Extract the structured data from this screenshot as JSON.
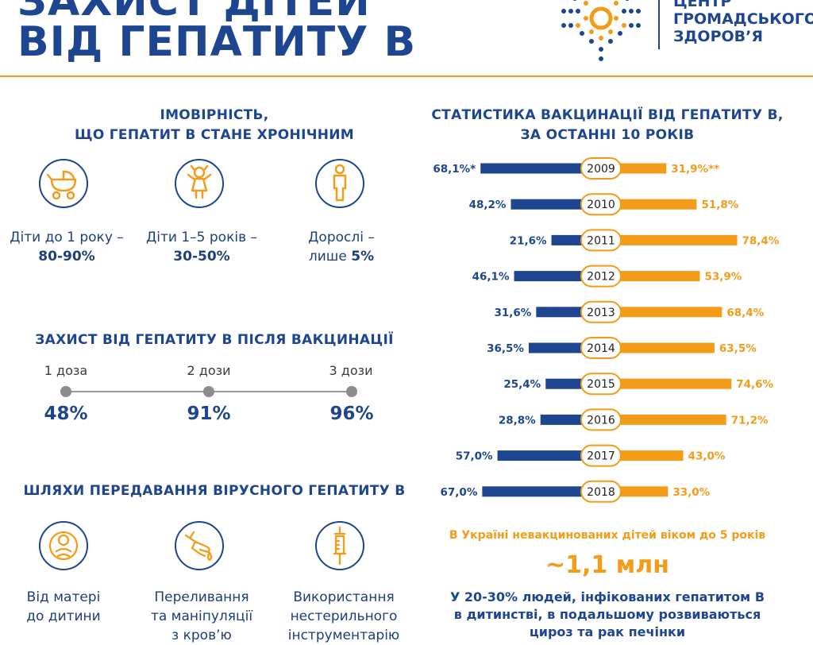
{
  "header": {
    "title_line1": "ЗАХИСТ ДІТЕЙ",
    "title_line2": "ВІД ГЕПАТИТУ В",
    "logo_line1": "ЦЕНТР",
    "logo_line2": "ГРОМАДСЬКОГО",
    "logo_line3": "ЗДОРОВ’Я"
  },
  "chronic": {
    "title_line1": "ІМОВІРНІСТЬ,",
    "title_line2": "ЩО ГЕПАТИТ В СТАНЕ ХРОНІЧНИМ",
    "items": [
      {
        "label": "Діти до 1 року –",
        "value": "80-90%",
        "icon": "baby-stroller-icon"
      },
      {
        "label": "Діти 1–5 років –",
        "value": "30-50%",
        "icon": "child-icon"
      },
      {
        "label": "Дорослі –",
        "label2": "лише",
        "value": "5%",
        "icon": "adult-icon"
      }
    ]
  },
  "protection": {
    "title": "ЗАХИСТ ВІД ГЕПАТИТУ В ПІСЛЯ ВАКЦИНАЦІЇ",
    "doses": [
      {
        "label": "1 доза",
        "value": "48%"
      },
      {
        "label": "2 дози",
        "value": "91%"
      },
      {
        "label": "3 дози",
        "value": "96%"
      }
    ]
  },
  "transmission": {
    "title": "ШЛЯХИ ПЕРЕДАВАННЯ ВІРУСНОГО ГЕПАТИТУ В",
    "items": [
      {
        "line1": "Від матері",
        "line2": "до дитини",
        "line3": "",
        "icon": "mother-child-icon"
      },
      {
        "line1": "Переливання",
        "line2": "та маніпуляції",
        "line3": "з кров’ю",
        "icon": "blood-hand-icon"
      },
      {
        "line1": "Використання",
        "line2": "нестерильного",
        "line3": "інструментарію",
        "icon": "syringe-icon"
      }
    ]
  },
  "stats": {
    "title_line1": "СТАТИСТИКА ВАКЦИНАЦІЇ ВІД ГЕПАТИТУ В,",
    "title_line2": "ЗА ОСТАННІ 10 РОКІВ",
    "note": "В Україні невакцинованих дітей віком до 5 років",
    "big_value": "~1,1 млн",
    "bottom_line1": "У 20-30% людей, інфікованих гепатитом В",
    "bottom_line2": "в дитинстві, в подальшому розвиваються",
    "bottom_line3": "цироз та рак печінки"
  },
  "colors": {
    "blue": "#1e4690",
    "orange": "#f39c1a"
  },
  "chart_data": {
    "type": "bar",
    "categories": [
      "2009",
      "2010",
      "2011",
      "2012",
      "2013",
      "2014",
      "2015",
      "2016",
      "2017",
      "2018"
    ],
    "series": [
      {
        "values": [
          68.1,
          48.2,
          21.6,
          46.1,
          31.6,
          36.5,
          25.4,
          28.8,
          57.0,
          67.0
        ],
        "labels": [
          "68,1%*",
          "48,2%",
          "21,6%",
          "46,1%",
          "31,6%",
          "36,5%",
          "25,4%",
          "28,8%",
          "57,0%",
          "67,0%"
        ]
      },
      {
        "values": [
          31.9,
          51.8,
          78.4,
          53.9,
          68.4,
          63.5,
          74.6,
          71.2,
          43.0,
          33.0
        ],
        "labels": [
          "31,9%**",
          "51,8%",
          "78,4%",
          "53,9%",
          "68,4%",
          "63,5%",
          "74,6%",
          "71,2%",
          "43,0%",
          "33,0%"
        ]
      }
    ],
    "orientation": "diverging-horizontal",
    "grid": false
  }
}
